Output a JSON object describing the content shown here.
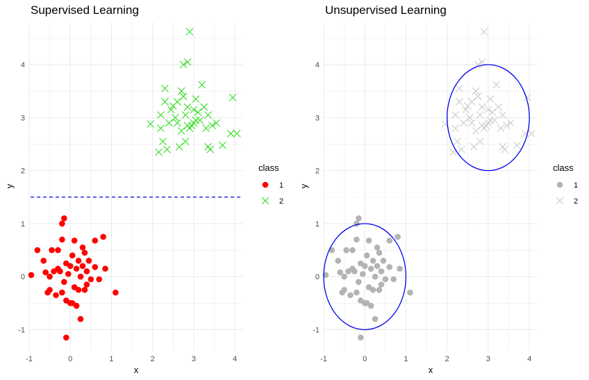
{
  "chart_data": [
    {
      "type": "scatter",
      "title": "Supervised Learning",
      "xlabel": "x",
      "ylabel": "y",
      "xlim": [
        -1.0,
        4.2
      ],
      "ylim": [
        -1.4,
        4.8
      ],
      "x_ticks": [
        "-1",
        "0",
        "1",
        "2",
        "3",
        "4"
      ],
      "y_ticks": [
        "-1",
        "0",
        "1",
        "2",
        "3",
        "4"
      ],
      "grid": true,
      "legend": {
        "title": "class",
        "position": "right",
        "entries": [
          "1",
          "2"
        ]
      },
      "colors": {
        "1": "#ff0000",
        "2": "#33dd22",
        "line": "#0000ee"
      },
      "hline": {
        "y": 1.5,
        "style": "dashed"
      },
      "series": [
        {
          "name": "1",
          "marker": "circle",
          "points": [
            [
              -0.95,
              0.03
            ],
            [
              -0.8,
              0.5
            ],
            [
              -0.65,
              0.3
            ],
            [
              -0.6,
              0.08
            ],
            [
              -0.55,
              -0.3
            ],
            [
              -0.5,
              -0.25
            ],
            [
              -0.45,
              0.5
            ],
            [
              -0.4,
              0.1
            ],
            [
              -0.35,
              -0.35
            ],
            [
              -0.3,
              0.5
            ],
            [
              -0.25,
              0.1
            ],
            [
              -0.2,
              0.7
            ],
            [
              -0.2,
              1.0
            ],
            [
              -0.15,
              1.1
            ],
            [
              -0.15,
              -0.1
            ],
            [
              -0.1,
              0.25
            ],
            [
              -0.1,
              -0.45
            ],
            [
              -0.05,
              0.05
            ],
            [
              0.0,
              0.2
            ],
            [
              0.05,
              -0.5
            ],
            [
              0.1,
              0.68
            ],
            [
              0.1,
              -0.2
            ],
            [
              0.15,
              -0.55
            ],
            [
              0.2,
              0.3
            ],
            [
              0.2,
              -0.25
            ],
            [
              0.25,
              0.0
            ],
            [
              0.25,
              -0.8
            ],
            [
              0.3,
              0.55
            ],
            [
              0.3,
              0.2
            ],
            [
              0.35,
              0.45
            ],
            [
              0.4,
              0.1
            ],
            [
              0.4,
              -0.15
            ],
            [
              0.45,
              0.3
            ],
            [
              0.5,
              -0.05
            ],
            [
              0.6,
              0.68
            ],
            [
              0.6,
              0.18
            ],
            [
              0.7,
              -0.05
            ],
            [
              0.8,
              0.75
            ],
            [
              0.85,
              0.15
            ],
            [
              1.1,
              -0.3
            ],
            [
              -0.1,
              -1.15
            ],
            [
              0.0,
              -0.5
            ],
            [
              -0.3,
              0.15
            ],
            [
              0.35,
              -0.25
            ],
            [
              -0.5,
              0.0
            ],
            [
              0.15,
              0.15
            ],
            [
              -0.2,
              -0.3
            ],
            [
              0.05,
              0.4
            ]
          ]
        },
        {
          "name": "2",
          "marker": "cross",
          "points": [
            [
              1.95,
              2.88
            ],
            [
              2.15,
              2.35
            ],
            [
              2.2,
              2.8
            ],
            [
              2.2,
              3.05
            ],
            [
              2.25,
              2.55
            ],
            [
              2.3,
              3.3
            ],
            [
              2.3,
              3.55
            ],
            [
              2.35,
              2.4
            ],
            [
              2.4,
              2.9
            ],
            [
              2.45,
              3.15
            ],
            [
              2.5,
              3.22
            ],
            [
              2.55,
              3.0
            ],
            [
              2.6,
              3.3
            ],
            [
              2.65,
              2.45
            ],
            [
              2.7,
              2.75
            ],
            [
              2.7,
              3.5
            ],
            [
              2.75,
              4.0
            ],
            [
              2.75,
              3.4
            ],
            [
              2.8,
              2.55
            ],
            [
              2.8,
              3.05
            ],
            [
              2.85,
              4.05
            ],
            [
              2.85,
              3.2
            ],
            [
              2.9,
              2.8
            ],
            [
              2.95,
              2.85
            ],
            [
              3.0,
              2.9
            ],
            [
              3.0,
              3.15
            ],
            [
              3.05,
              3.35
            ],
            [
              3.1,
              3.1
            ],
            [
              3.15,
              2.95
            ],
            [
              3.2,
              3.62
            ],
            [
              3.25,
              3.2
            ],
            [
              3.3,
              2.8
            ],
            [
              3.35,
              3.05
            ],
            [
              3.35,
              2.45
            ],
            [
              3.4,
              2.4
            ],
            [
              3.45,
              2.85
            ],
            [
              3.55,
              2.9
            ],
            [
              3.7,
              2.48
            ],
            [
              3.9,
              2.7
            ],
            [
              4.05,
              2.7
            ],
            [
              3.95,
              3.38
            ],
            [
              2.9,
              4.62
            ],
            [
              2.6,
              2.9
            ],
            [
              3.05,
              2.95
            ],
            [
              2.85,
              2.85
            ]
          ]
        }
      ]
    },
    {
      "type": "scatter",
      "title": "Unsupervised Learning",
      "xlabel": "x",
      "ylabel": "y",
      "xlim": [
        -1.0,
        4.2
      ],
      "ylim": [
        -1.4,
        4.8
      ],
      "x_ticks": [
        "-1",
        "0",
        "1",
        "2",
        "3",
        "4"
      ],
      "y_ticks": [
        "-1",
        "0",
        "1",
        "2",
        "3",
        "4"
      ],
      "grid": true,
      "legend": {
        "title": "class",
        "position": "right",
        "entries": [
          "1",
          "2"
        ]
      },
      "colors": {
        "1": "#b3b3b3",
        "2": "#cccccc",
        "line": "#0000ee"
      },
      "circles": [
        {
          "cx": 0,
          "cy": 0,
          "r": 1
        },
        {
          "cx": 3,
          "cy": 3,
          "r": 1
        }
      ]
    }
  ]
}
